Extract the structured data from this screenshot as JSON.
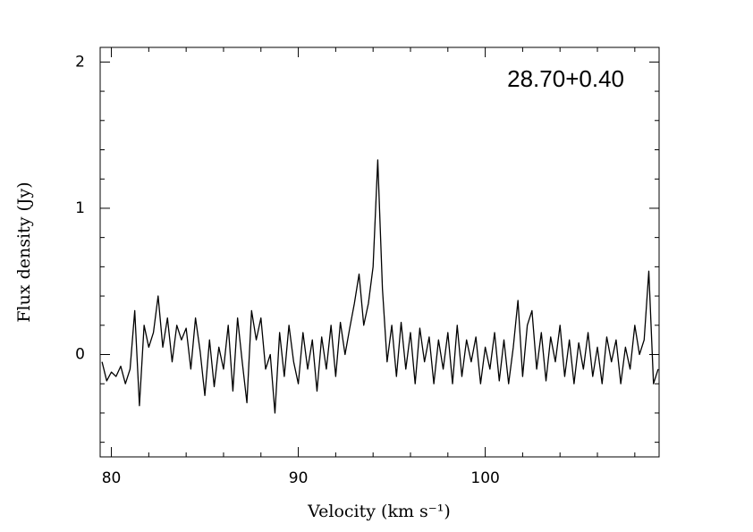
{
  "chart_data": {
    "type": "line",
    "annotation": "28.70+0.40",
    "xlabel": "Velocity (km s⁻¹)",
    "ylabel": "Flux density (Jy)",
    "color": "#000000",
    "xlim": [
      79.4,
      109.3
    ],
    "ylim": [
      -0.7,
      2.1
    ],
    "xticks": [
      80,
      90,
      100
    ],
    "yticks": [
      0,
      1,
      2
    ],
    "xminorticks": [
      82,
      84,
      86,
      88,
      92,
      94,
      96,
      98,
      102,
      104,
      106,
      108
    ],
    "yminorticks": [
      -0.6,
      -0.4,
      -0.2,
      0.2,
      0.4,
      0.6,
      0.8,
      1.2,
      1.4,
      1.6,
      1.8
    ],
    "x": [
      79.5,
      79.75,
      80,
      80.25,
      80.5,
      80.75,
      81,
      81.25,
      81.5,
      81.75,
      82,
      82.25,
      82.5,
      82.75,
      83,
      83.25,
      83.5,
      83.75,
      84,
      84.25,
      84.5,
      84.75,
      85,
      85.25,
      85.5,
      85.75,
      86,
      86.25,
      86.5,
      86.75,
      87,
      87.25,
      87.5,
      87.75,
      88,
      88.25,
      88.5,
      88.75,
      89,
      89.25,
      89.5,
      89.75,
      90,
      90.25,
      90.5,
      90.75,
      91,
      91.25,
      91.5,
      91.75,
      92,
      92.25,
      92.5,
      92.75,
      93,
      93.25,
      93.5,
      93.75,
      94,
      94.25,
      94.5,
      94.75,
      95,
      95.25,
      95.5,
      95.75,
      96,
      96.25,
      96.5,
      96.75,
      97,
      97.25,
      97.5,
      97.75,
      98,
      98.25,
      98.5,
      98.75,
      99,
      99.25,
      99.5,
      99.75,
      100,
      100.25,
      100.5,
      100.75,
      101,
      101.25,
      101.5,
      101.75,
      102,
      102.25,
      102.5,
      102.75,
      103,
      103.25,
      103.5,
      103.75,
      104,
      104.25,
      104.5,
      104.75,
      105,
      105.25,
      105.5,
      105.75,
      106,
      106.25,
      106.5,
      106.75,
      107,
      107.25,
      107.5,
      107.75,
      108,
      108.25,
      108.5,
      108.75,
      109,
      109.25
    ],
    "values": [
      -0.05,
      -0.18,
      -0.12,
      -0.15,
      -0.08,
      -0.2,
      -0.1,
      0.3,
      -0.35,
      0.2,
      0.05,
      0.15,
      0.4,
      0.05,
      0.25,
      -0.05,
      0.2,
      0.1,
      0.18,
      -0.1,
      0.25,
      0.02,
      -0.28,
      0.1,
      -0.22,
      0.05,
      -0.1,
      0.2,
      -0.25,
      0.25,
      -0.05,
      -0.33,
      0.3,
      0.1,
      0.25,
      -0.1,
      0,
      -0.4,
      0.15,
      -0.15,
      0.2,
      -0.05,
      -0.2,
      0.15,
      -0.1,
      0.1,
      -0.25,
      0.12,
      -0.1,
      0.2,
      -0.15,
      0.22,
      0,
      0.18,
      0.35,
      0.55,
      0.2,
      0.35,
      0.6,
      1.33,
      0.45,
      -0.05,
      0.2,
      -0.15,
      0.22,
      -0.1,
      0.15,
      -0.2,
      0.18,
      -0.05,
      0.12,
      -0.2,
      0.1,
      -0.1,
      0.15,
      -0.2,
      0.2,
      -0.15,
      0.1,
      -0.05,
      0.12,
      -0.2,
      0.05,
      -0.1,
      0.15,
      -0.18,
      0.1,
      -0.2,
      0.05,
      0.37,
      -0.15,
      0.2,
      0.3,
      -0.1,
      0.15,
      -0.18,
      0.12,
      -0.05,
      0.2,
      -0.15,
      0.1,
      -0.2,
      0.08,
      -0.1,
      0.15,
      -0.15,
      0.05,
      -0.2,
      0.12,
      -0.05,
      0.1,
      -0.2,
      0.05,
      -0.1,
      0.2,
      0,
      0.1,
      0.57,
      -0.2,
      -0.1
    ]
  }
}
